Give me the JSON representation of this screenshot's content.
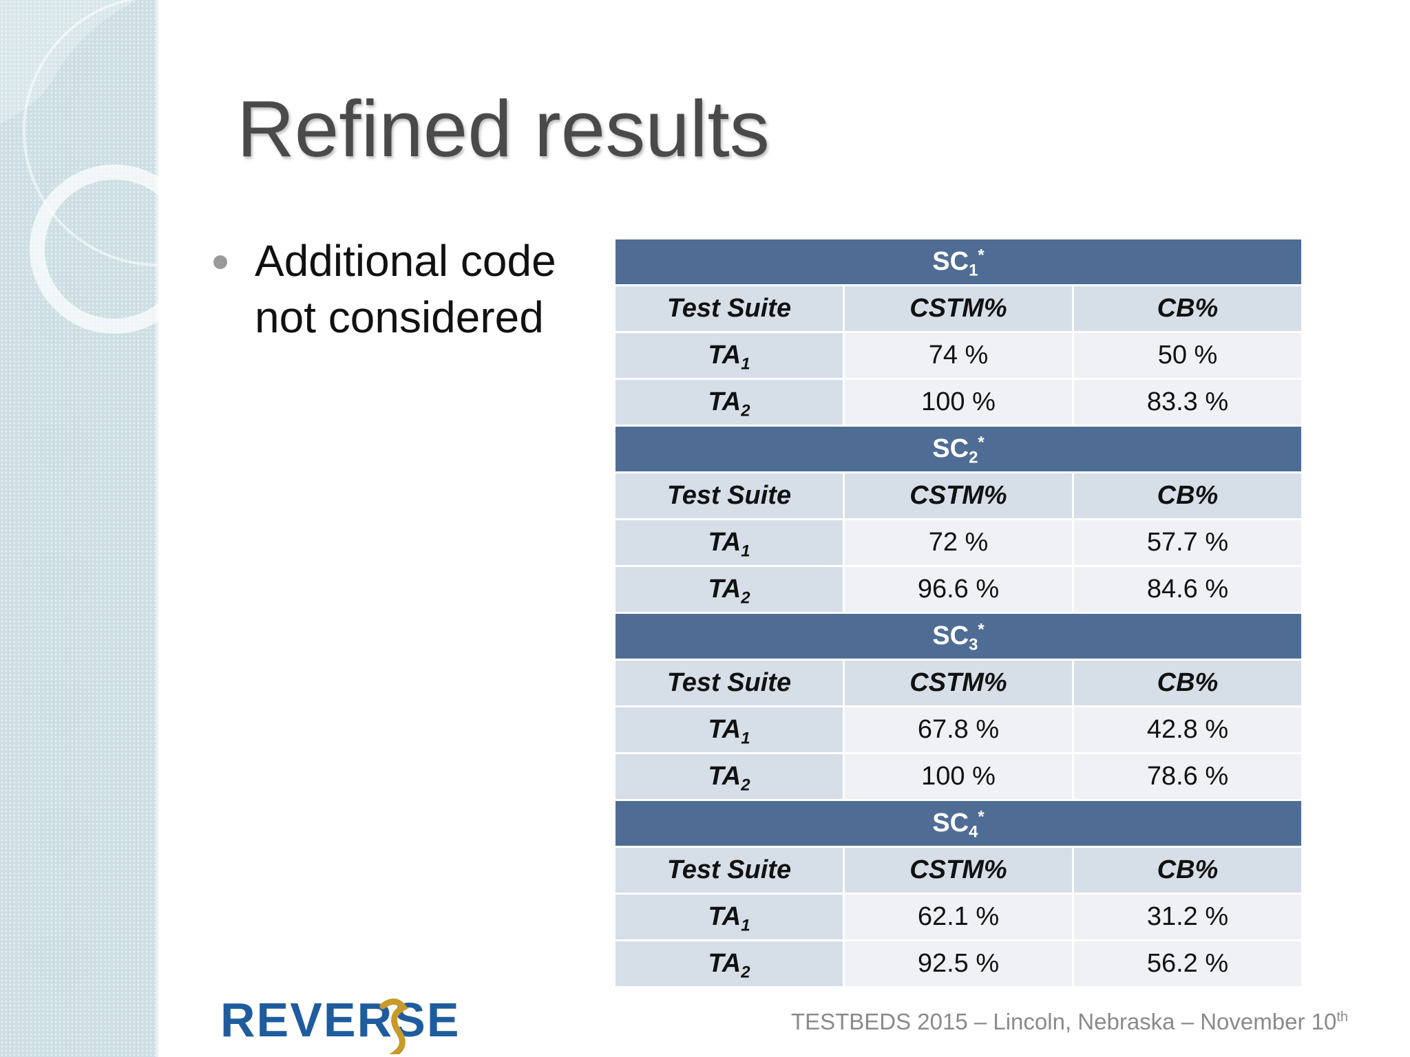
{
  "slide": {
    "title": "Refined results",
    "bullet": "Additional code not considered",
    "footer": {
      "text": "TESTBEDS 2015 – Lincoln, Nebraska – November 10",
      "sup": "th"
    },
    "logo": {
      "text": "REVERSE",
      "colors": {
        "primary": "#1f5c9e",
        "accent": "#c89a2a"
      }
    }
  },
  "table": {
    "colors": {
      "section": "#4f6d94",
      "header": "#d6dee8",
      "cell": "#f0f1f4"
    },
    "sections": [
      {
        "title": "SC",
        "sub": "1",
        "sup": "*",
        "headers": [
          "Test Suite",
          "CSTM%",
          "CB%"
        ],
        "rows": [
          {
            "label": "TA",
            "sub": "1",
            "cstm": "74 %",
            "cb": "50 %"
          },
          {
            "label": "TA",
            "sub": "2",
            "cstm": "100 %",
            "cb": "83.3 %"
          }
        ]
      },
      {
        "title": "SC",
        "sub": "2",
        "sup": "*",
        "headers": [
          "Test Suite",
          "CSTM%",
          "CB%"
        ],
        "rows": [
          {
            "label": "TA",
            "sub": "1",
            "cstm": "72 %",
            "cb": "57.7 %"
          },
          {
            "label": "TA",
            "sub": "2",
            "cstm": "96.6 %",
            "cb": "84.6 %"
          }
        ]
      },
      {
        "title": "SC",
        "sub": "3",
        "sup": "*",
        "headers": [
          "Test Suite",
          "CSTM%",
          "CB%"
        ],
        "rows": [
          {
            "label": "TA",
            "sub": "1",
            "cstm": "67.8 %",
            "cb": "42.8 %"
          },
          {
            "label": "TA",
            "sub": "2",
            "cstm": "100 %",
            "cb": "78.6 %"
          }
        ]
      },
      {
        "title": "SC",
        "sub": "4",
        "sup": "*",
        "headers": [
          "Test Suite",
          "CSTM%",
          "CB%"
        ],
        "rows": [
          {
            "label": "TA",
            "sub": "1",
            "cstm": "62.1 %",
            "cb": "31.2 %"
          },
          {
            "label": "TA",
            "sub": "2",
            "cstm": "92.5 %",
            "cb": "56.2 %"
          }
        ]
      }
    ]
  }
}
